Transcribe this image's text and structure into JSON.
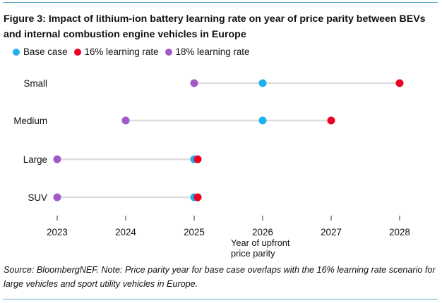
{
  "chart_data": {
    "type": "scatter",
    "subtype": "dot-plot",
    "title": "Figure 3: Impact of lithium-ion battery learning rate on year of price parity between BEVs and internal combustion engine vehicles in Europe",
    "xlabel": "Year of upfront price parity",
    "ylabel": "",
    "xlim": [
      2023,
      2028
    ],
    "x_ticks": [
      "2023",
      "2024",
      "2025",
      "2026",
      "2027",
      "2028"
    ],
    "categories": [
      "Small",
      "Medium",
      "Large",
      "SUV"
    ],
    "series": [
      {
        "name": "Base case",
        "color": "#1fb0f0",
        "values": [
          2026,
          2026,
          2025,
          2025
        ]
      },
      {
        "name": "16% learning rate",
        "color": "#ee0022",
        "values": [
          2028,
          2027,
          2025,
          2025
        ]
      },
      {
        "name": "18% learning rate",
        "color": "#a05ac8",
        "values": [
          2025,
          2024,
          2023,
          2023
        ]
      }
    ],
    "legend_position": "top-left",
    "grid": false
  },
  "legend": [
    {
      "label": "Base case",
      "color": "#1fb0f0"
    },
    {
      "label": "16% learning rate",
      "color": "#ee0022"
    },
    {
      "label": "18% learning rate",
      "color": "#a05ac8"
    }
  ],
  "axis_title_lines": [
    "Year of upfront",
    "price parity"
  ],
  "source_note": "Source: BloombergNEF. Note: Price parity year for base case overlaps with the 16% learning rate scenario for large vehicles and sport utility vehicles in Europe.",
  "colors": {
    "range_line": "#dddddd",
    "rule": "#5aaecb"
  }
}
